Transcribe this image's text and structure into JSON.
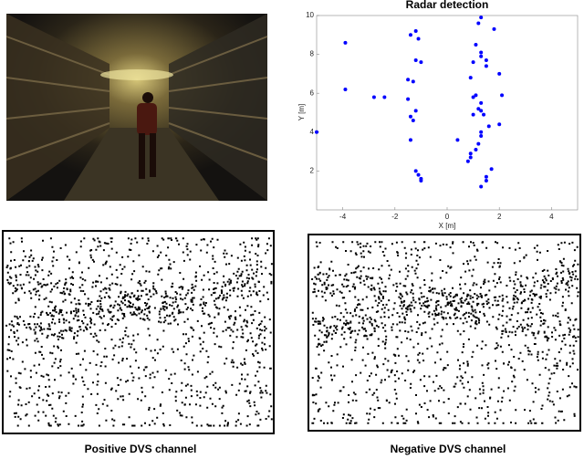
{
  "chart_data": {
    "type": "scatter",
    "title": "Radar detection",
    "xlabel": "X [m]",
    "ylabel": "Y [m]",
    "xlim": [
      -5,
      5
    ],
    "ylim": [
      0,
      10
    ],
    "xticks": [
      -4,
      -2,
      0,
      2,
      4
    ],
    "yticks": [
      2,
      4,
      6,
      8,
      10
    ],
    "color": "#0000ff",
    "x": [
      -3.9,
      -3.9,
      -2.8,
      -2.4,
      -5.0,
      -1.4,
      -1.2,
      -1.1,
      -1.2,
      -1.0,
      -1.5,
      -1.3,
      -1.5,
      -1.2,
      -1.4,
      -1.3,
      -1.4,
      -1.2,
      -1.1,
      -1.0,
      -1.0,
      1.3,
      1.2,
      1.8,
      1.1,
      1.3,
      1.3,
      1.5,
      1.0,
      1.5,
      2.0,
      0.9,
      1.1,
      2.1,
      1.0,
      1.3,
      1.2,
      1.3,
      1.0,
      1.4,
      2.0,
      1.6,
      1.3,
      1.3,
      0.4,
      1.2,
      1.1,
      0.9,
      0.9,
      0.8,
      1.7,
      1.5,
      1.5,
      1.3
    ],
    "values": [
      8.6,
      6.2,
      5.8,
      5.8,
      4.0,
      9.0,
      9.2,
      8.8,
      7.7,
      7.6,
      6.7,
      6.6,
      5.7,
      5.1,
      4.8,
      4.6,
      3.6,
      2.0,
      1.8,
      1.6,
      1.5,
      9.9,
      9.6,
      9.3,
      8.5,
      8.1,
      7.9,
      7.7,
      7.6,
      7.4,
      7.0,
      6.8,
      5.9,
      5.9,
      5.8,
      5.5,
      5.2,
      5.1,
      4.9,
      4.9,
      4.4,
      4.3,
      4.0,
      3.8,
      3.6,
      3.4,
      3.1,
      2.9,
      2.7,
      2.5,
      2.1,
      1.7,
      1.5,
      1.2
    ]
  },
  "captions": [
    "Positive DVS channel",
    "Negative DVS channel"
  ]
}
